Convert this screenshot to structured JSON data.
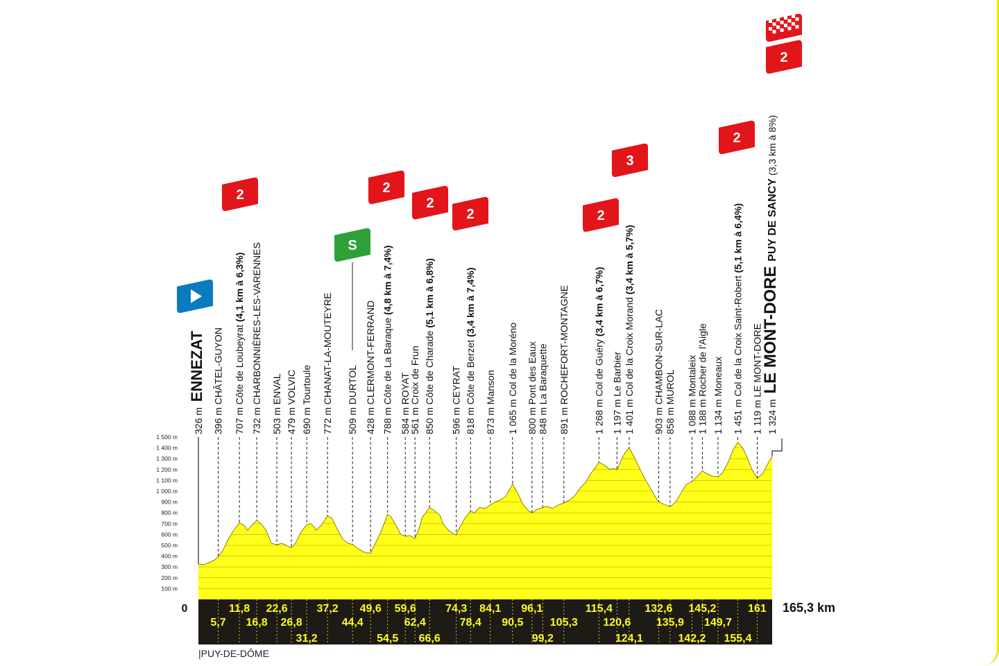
{
  "colors": {
    "profile": "#ffff1a",
    "outline": "#555555",
    "band": "#1e1a16",
    "band_text": "#ffff1a",
    "climb_flag": "#e2151b",
    "sprint_flag": "#2ea03a",
    "start_flag": "#0b7ac0",
    "frame": "#f2e600"
  },
  "chart_data": {
    "type": "area",
    "title": "",
    "xlabel": "",
    "ylabel": "",
    "xlim": [
      0,
      165.3
    ],
    "ylim": [
      0,
      1500
    ],
    "y_ticks": [
      "100 m",
      "200 m",
      "300 m",
      "400 m",
      "500 m",
      "600 m",
      "700 m",
      "800 m",
      "900 m",
      "1 000 m",
      "1 100 m",
      "1 200 m",
      "1 300 m",
      "1 400 m",
      "1 500 m"
    ],
    "x_start_label": "0",
    "x_end_label": "165,3 km",
    "profile": [
      [
        0,
        326
      ],
      [
        1.5,
        320
      ],
      [
        3,
        340
      ],
      [
        4.5,
        360
      ],
      [
        5.7,
        396
      ],
      [
        7,
        450
      ],
      [
        8.5,
        550
      ],
      [
        10,
        630
      ],
      [
        11.8,
        707
      ],
      [
        13,
        690
      ],
      [
        14.2,
        640
      ],
      [
        15.5,
        690
      ],
      [
        16.8,
        732
      ],
      [
        18,
        700
      ],
      [
        19.5,
        640
      ],
      [
        21,
        520
      ],
      [
        22.6,
        503
      ],
      [
        24,
        520
      ],
      [
        25.2,
        500
      ],
      [
        26.8,
        479
      ],
      [
        28,
        520
      ],
      [
        29.5,
        620
      ],
      [
        31.2,
        690
      ],
      [
        32.5,
        700
      ],
      [
        34,
        640
      ],
      [
        35.5,
        690
      ],
      [
        37.2,
        772
      ],
      [
        38.5,
        750
      ],
      [
        40,
        650
      ],
      [
        41.5,
        560
      ],
      [
        43,
        520
      ],
      [
        44.4,
        509
      ],
      [
        46,
        470
      ],
      [
        47.5,
        440
      ],
      [
        48.5,
        430
      ],
      [
        49.6,
        428
      ],
      [
        51,
        520
      ],
      [
        52.5,
        620
      ],
      [
        53.5,
        700
      ],
      [
        54.5,
        788
      ],
      [
        55.5,
        760
      ],
      [
        57,
        680
      ],
      [
        58.3,
        600
      ],
      [
        59.6,
        584
      ],
      [
        61,
        590
      ],
      [
        62.4,
        561
      ],
      [
        63.5,
        650
      ],
      [
        64.5,
        760
      ],
      [
        65.5,
        800
      ],
      [
        66.6,
        850
      ],
      [
        68,
        820
      ],
      [
        69.5,
        780
      ],
      [
        70.5,
        700
      ],
      [
        72,
        640
      ],
      [
        73.2,
        610
      ],
      [
        74.3,
        596
      ],
      [
        75.5,
        680
      ],
      [
        77,
        760
      ],
      [
        78.4,
        818
      ],
      [
        79.5,
        800
      ],
      [
        81,
        850
      ],
      [
        82.5,
        840
      ],
      [
        84.1,
        873
      ],
      [
        85.5,
        900
      ],
      [
        87,
        920
      ],
      [
        88.5,
        950
      ],
      [
        90.5,
        1065
      ],
      [
        92,
        980
      ],
      [
        93.5,
        880
      ],
      [
        95,
        820
      ],
      [
        96.1,
        800
      ],
      [
        97.5,
        830
      ],
      [
        99.2,
        848
      ],
      [
        100.5,
        860
      ],
      [
        102,
        840
      ],
      [
        103.5,
        870
      ],
      [
        105.3,
        891
      ],
      [
        107,
        920
      ],
      [
        108.5,
        960
      ],
      [
        110,
        1030
      ],
      [
        111.5,
        1080
      ],
      [
        113,
        1160
      ],
      [
        114.2,
        1210
      ],
      [
        115.4,
        1268
      ],
      [
        117,
        1240
      ],
      [
        118.5,
        1200
      ],
      [
        119.5,
        1210
      ],
      [
        120.6,
        1197
      ],
      [
        122,
        1300
      ],
      [
        123,
        1360
      ],
      [
        124.1,
        1401
      ],
      [
        125.5,
        1320
      ],
      [
        127,
        1220
      ],
      [
        128.5,
        1120
      ],
      [
        130,
        1040
      ],
      [
        131.4,
        960
      ],
      [
        132.6,
        903
      ],
      [
        134,
        880
      ],
      [
        135.9,
        858
      ],
      [
        137.5,
        900
      ],
      [
        139,
        980
      ],
      [
        140.5,
        1060
      ],
      [
        142.2,
        1088
      ],
      [
        143.8,
        1140
      ],
      [
        145.2,
        1188
      ],
      [
        146.5,
        1160
      ],
      [
        148,
        1140
      ],
      [
        149.7,
        1134
      ],
      [
        151,
        1170
      ],
      [
        152.5,
        1260
      ],
      [
        154,
        1380
      ],
      [
        155.4,
        1451
      ],
      [
        156.8,
        1400
      ],
      [
        158,
        1320
      ],
      [
        159.5,
        1200
      ],
      [
        161,
        1119
      ],
      [
        162.5,
        1160
      ],
      [
        163.8,
        1240
      ],
      [
        165.3,
        1324
      ]
    ],
    "km_marks": [
      {
        "km": 5.7,
        "label": "5,7",
        "row": 1
      },
      {
        "km": 11.8,
        "label": "11,8",
        "row": 0
      },
      {
        "km": 16.8,
        "label": "16,8",
        "row": 1
      },
      {
        "km": 22.6,
        "label": "22,6",
        "row": 0
      },
      {
        "km": 26.8,
        "label": "26,8",
        "row": 1
      },
      {
        "km": 31.2,
        "label": "31,2",
        "row": 2
      },
      {
        "km": 37.2,
        "label": "37,2",
        "row": 0
      },
      {
        "km": 44.4,
        "label": "44,4",
        "row": 1
      },
      {
        "km": 49.6,
        "label": "49,6",
        "row": 0
      },
      {
        "km": 54.5,
        "label": "54,5",
        "row": 2
      },
      {
        "km": 59.6,
        "label": "59,6",
        "row": 0
      },
      {
        "km": 62.4,
        "label": "62,4",
        "row": 1
      },
      {
        "km": 66.6,
        "label": "66,6",
        "row": 2
      },
      {
        "km": 74.3,
        "label": "74,3",
        "row": 0
      },
      {
        "km": 78.4,
        "label": "78,4",
        "row": 1
      },
      {
        "km": 84.1,
        "label": "84,1",
        "row": 0
      },
      {
        "km": 90.5,
        "label": "90,5",
        "row": 1
      },
      {
        "km": 96.1,
        "label": "96,1",
        "row": 0
      },
      {
        "km": 99.2,
        "label": "99,2",
        "row": 2
      },
      {
        "km": 105.3,
        "label": "105,3",
        "row": 1
      },
      {
        "km": 115.4,
        "label": "115,4",
        "row": 0
      },
      {
        "km": 120.6,
        "label": "120,6",
        "row": 1
      },
      {
        "km": 124.1,
        "label": "124,1",
        "row": 2
      },
      {
        "km": 132.6,
        "label": "132,6",
        "row": 0
      },
      {
        "km": 135.9,
        "label": "135,9",
        "row": 1
      },
      {
        "km": 142.2,
        "label": "142,2",
        "row": 2
      },
      {
        "km": 145.2,
        "label": "145,2",
        "row": 0
      },
      {
        "km": 149.7,
        "label": "149,7",
        "row": 1
      },
      {
        "km": 155.4,
        "label": "155,4",
        "row": 2
      },
      {
        "km": 161,
        "label": "161",
        "row": 0
      }
    ],
    "waypoints": [
      {
        "km": 0,
        "alt": "326 m",
        "name": "ENNEZAT",
        "climb": "",
        "style": "big",
        "flag": "start"
      },
      {
        "km": 5.7,
        "alt": "396 m",
        "name": "CHÂTEL-GUYON",
        "climb": "",
        "style": "normal",
        "flag": ""
      },
      {
        "km": 11.8,
        "alt": "707 m",
        "name": "Côte de Loubeyrat",
        "climb": "(4,1 km à 6,3%)",
        "style": "normal",
        "flag": "2"
      },
      {
        "km": 16.8,
        "alt": "732 m",
        "name": "CHARBONNIÈRES-LES-VARENNES",
        "climb": "",
        "style": "normal",
        "flag": ""
      },
      {
        "km": 22.6,
        "alt": "503 m",
        "name": "ENVAL",
        "climb": "",
        "style": "normal",
        "flag": ""
      },
      {
        "km": 26.8,
        "alt": "479 m",
        "name": "VOLVIC",
        "climb": "",
        "style": "normal",
        "flag": ""
      },
      {
        "km": 31.2,
        "alt": "690 m",
        "name": "Tourtoule",
        "climb": "",
        "style": "normal",
        "flag": ""
      },
      {
        "km": 37.2,
        "alt": "772 m",
        "name": "CHANAT-LA-MOUTEYRE",
        "climb": "",
        "style": "normal",
        "flag": ""
      },
      {
        "km": 44.4,
        "alt": "509 m",
        "name": "DURTOL",
        "climb": "",
        "style": "normal",
        "flag": "sprint"
      },
      {
        "km": 49.6,
        "alt": "428 m",
        "name": "CLERMONT-FERRAND",
        "climb": "",
        "style": "normal",
        "flag": ""
      },
      {
        "km": 54.5,
        "alt": "788 m",
        "name": "Côte de La Baraque",
        "climb": "(4,8 km à 7,4%)",
        "style": "normal",
        "flag": "2"
      },
      {
        "km": 59.6,
        "alt": "584 m",
        "name": "ROYAT",
        "climb": "",
        "style": "normal",
        "flag": ""
      },
      {
        "km": 62.4,
        "alt": "561 m",
        "name": "Croix de Frun",
        "climb": "",
        "style": "normal",
        "flag": ""
      },
      {
        "km": 66.6,
        "alt": "850 m",
        "name": "Côte de Charade",
        "climb": "(5,1 km à 6,8%)",
        "style": "normal",
        "flag": "2"
      },
      {
        "km": 74.3,
        "alt": "596 m",
        "name": "CEYRAT",
        "climb": "",
        "style": "normal",
        "flag": ""
      },
      {
        "km": 78.4,
        "alt": "818 m",
        "name": "Côte de Berzet",
        "climb": "(3,4 km à 7,4%)",
        "style": "normal",
        "flag": "2"
      },
      {
        "km": 84.1,
        "alt": "873 m",
        "name": "Manson",
        "climb": "",
        "style": "normal",
        "flag": ""
      },
      {
        "km": 90.5,
        "alt": "1 065 m",
        "name": "Col de la Moréno",
        "climb": "",
        "style": "normal",
        "flag": ""
      },
      {
        "km": 96.1,
        "alt": "800 m",
        "name": "Pont des Eaux",
        "climb": "",
        "style": "normal",
        "flag": ""
      },
      {
        "km": 99.2,
        "alt": "848 m",
        "name": "La Baraquette",
        "climb": "",
        "style": "normal",
        "flag": ""
      },
      {
        "km": 105.3,
        "alt": "891 m",
        "name": "ROCHEFORT-MONTAGNE",
        "climb": "",
        "style": "normal",
        "flag": ""
      },
      {
        "km": 115.4,
        "alt": "1 268 m",
        "name": "Col de Guéry",
        "climb": "(3,4 km à 6,7%)",
        "style": "normal",
        "flag": "2"
      },
      {
        "km": 120.6,
        "alt": "1 197 m",
        "name": "Le Barbier",
        "climb": "",
        "style": "normal",
        "flag": ""
      },
      {
        "km": 124.1,
        "alt": "1 401 m",
        "name": "Col de la Croix Morand",
        "climb": "(3,4 km à 5,7%)",
        "style": "normal",
        "flag": "3"
      },
      {
        "km": 132.6,
        "alt": "903 m",
        "name": "CHAMBON-SUR-LAC",
        "climb": "",
        "style": "normal",
        "flag": ""
      },
      {
        "km": 135.9,
        "alt": "858 m",
        "name": "MUROL",
        "climb": "",
        "style": "normal",
        "flag": ""
      },
      {
        "km": 142.2,
        "alt": "1 088 m",
        "name": "Montaleix",
        "climb": "",
        "style": "normal",
        "flag": ""
      },
      {
        "km": 145.2,
        "alt": "1 188 m",
        "name": "Rocher de l'Aigle",
        "climb": "",
        "style": "normal",
        "flag": ""
      },
      {
        "km": 149.7,
        "alt": "1 134 m",
        "name": "Moneaux",
        "climb": "",
        "style": "normal",
        "flag": ""
      },
      {
        "km": 155.4,
        "alt": "1 451 m",
        "name": "Col de la Croix Saint-Robert",
        "climb": "(5,1 km à 6,4%)",
        "style": "normal",
        "flag": "2"
      },
      {
        "km": 161,
        "alt": "1 119 m",
        "name": "LE MONT-DORE",
        "climb": "",
        "style": "normal",
        "flag": ""
      },
      {
        "km": 165.3,
        "alt": "1 324 m",
        "name": "LE MONT-DORE",
        "climb": "",
        "sub": "PUY DE SANCY",
        "subclimb": "(3,3 km à 8%)",
        "style": "finish",
        "flag": "finish"
      }
    ]
  },
  "region_label": "|PUY-DE-DÔME"
}
